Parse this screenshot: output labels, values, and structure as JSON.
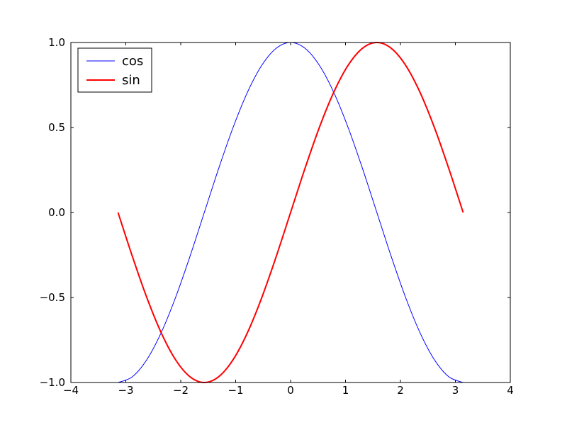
{
  "chart_data": {
    "type": "line",
    "x": [
      -3.1416,
      -2.8798,
      -2.618,
      -2.3562,
      -2.0944,
      -1.8326,
      -1.5708,
      -1.309,
      -1.0472,
      -0.7854,
      -0.5236,
      -0.2618,
      0,
      0.2618,
      0.5236,
      0.7854,
      1.0472,
      1.309,
      1.5708,
      1.8326,
      2.0944,
      2.3562,
      2.618,
      2.8798,
      3.1416
    ],
    "series": [
      {
        "name": "cos",
        "color": "#0000ff",
        "linewidth": 1,
        "values": [
          -1,
          -0.966,
          -0.866,
          -0.707,
          -0.5,
          -0.259,
          0,
          0.259,
          0.5,
          0.707,
          0.866,
          0.966,
          1,
          0.966,
          0.866,
          0.707,
          0.5,
          0.259,
          0,
          -0.259,
          -0.5,
          -0.707,
          -0.866,
          -0.966,
          -1
        ]
      },
      {
        "name": "sin",
        "color": "#ff0000",
        "linewidth": 2,
        "values": [
          0,
          -0.259,
          -0.5,
          -0.707,
          -0.866,
          -0.966,
          -1,
          -0.966,
          -0.866,
          -0.707,
          -0.5,
          -0.259,
          0,
          0.259,
          0.5,
          0.707,
          0.866,
          0.966,
          1,
          0.966,
          0.866,
          0.707,
          0.5,
          0.259,
          0
        ]
      }
    ],
    "xlim": [
      -4,
      4
    ],
    "xticks": [
      {
        "value": -4,
        "label": "−4"
      },
      {
        "value": -3,
        "label": "−3"
      },
      {
        "value": -2,
        "label": "−2"
      },
      {
        "value": -1,
        "label": "−1"
      },
      0,
      1,
      2,
      3,
      4
    ],
    "ylim": [
      -1,
      1
    ],
    "yticks": [
      {
        "value": -1,
        "label": "−1.0"
      },
      {
        "value": -0.5,
        "label": "−0.5"
      },
      {
        "value": 0,
        "label": "0.0"
      },
      0.5,
      {
        "value": 1,
        "label": "1.0"
      }
    ],
    "grid": false,
    "legend": "upper left"
  }
}
